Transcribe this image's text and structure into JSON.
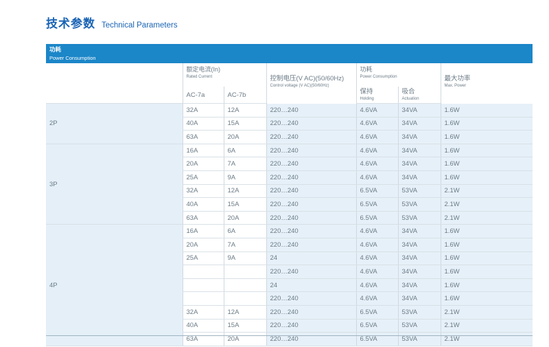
{
  "page": {
    "title_zh": "技术参数",
    "title_en": "Technical Parameters"
  },
  "section": {
    "title_zh": "功耗",
    "title_en": "Power Consumption"
  },
  "table": {
    "rated_current_zh": "额定电流(In)",
    "rated_current_en": "Rated Current",
    "ac7a": "AC-7a",
    "ac7b": "AC-7b",
    "control_voltage_zh": "控制电压(V AC)(50/60Hz)",
    "control_voltage_en": "Control voltage (V AC)(50/60Hz)",
    "power_zh": "功耗",
    "power_en": "Power Consumption",
    "holding_zh": "保持",
    "holding_en": "Holding",
    "actuation_zh": "吸合",
    "actuation_en": "Actuation",
    "max_power_zh": "最大功率",
    "max_power_en": "Max. Power",
    "groups": [
      {
        "pole": "2P",
        "rows": [
          [
            "32A",
            "12A",
            "220…240",
            "4.6VA",
            "34VA",
            "1.6W"
          ],
          [
            "40A",
            "15A",
            "220…240",
            "4.6VA",
            "34VA",
            "1.6W"
          ],
          [
            "63A",
            "20A",
            "220…240",
            "4.6VA",
            "34VA",
            "1.6W"
          ]
        ]
      },
      {
        "pole": "3P",
        "rows": [
          [
            "16A",
            "6A",
            "220…240",
            "4.6VA",
            "34VA",
            "1.6W"
          ],
          [
            "20A",
            "7A",
            "220…240",
            "4.6VA",
            "34VA",
            "1.6W"
          ],
          [
            "25A",
            "9A",
            "220…240",
            "4.6VA",
            "34VA",
            "1.6W"
          ],
          [
            "32A",
            "12A",
            "220…240",
            "6.5VA",
            "53VA",
            "2.1W"
          ],
          [
            "40A",
            "15A",
            "220…240",
            "6.5VA",
            "53VA",
            "2.1W"
          ],
          [
            "63A",
            "20A",
            "220…240",
            "6.5VA",
            "53VA",
            "2.1W"
          ]
        ]
      },
      {
        "pole": "4P",
        "rows": [
          [
            "16A",
            "6A",
            "220…240",
            "4.6VA",
            "34VA",
            "1.6W"
          ],
          [
            "20A",
            "7A",
            "220…240",
            "4.6VA",
            "34VA",
            "1.6W"
          ],
          [
            "25A",
            "9A",
            "24",
            "4.6VA",
            "34VA",
            "1.6W"
          ],
          [
            "",
            "",
            "220…240",
            "4.6VA",
            "34VA",
            "1.6W"
          ],
          [
            "",
            "",
            "24",
            "4.6VA",
            "34VA",
            "1.6W"
          ],
          [
            "",
            "",
            "220…240",
            "4.6VA",
            "34VA",
            "1.6W"
          ],
          [
            "32A",
            "12A",
            "220…240",
            "6.5VA",
            "53VA",
            "2.1W"
          ],
          [
            "40A",
            "15A",
            "220…240",
            "6.5VA",
            "53VA",
            "2.1W"
          ],
          [
            "63A",
            "20A",
            "220…240",
            "6.5VA",
            "53VA",
            "2.1W"
          ]
        ]
      }
    ]
  }
}
